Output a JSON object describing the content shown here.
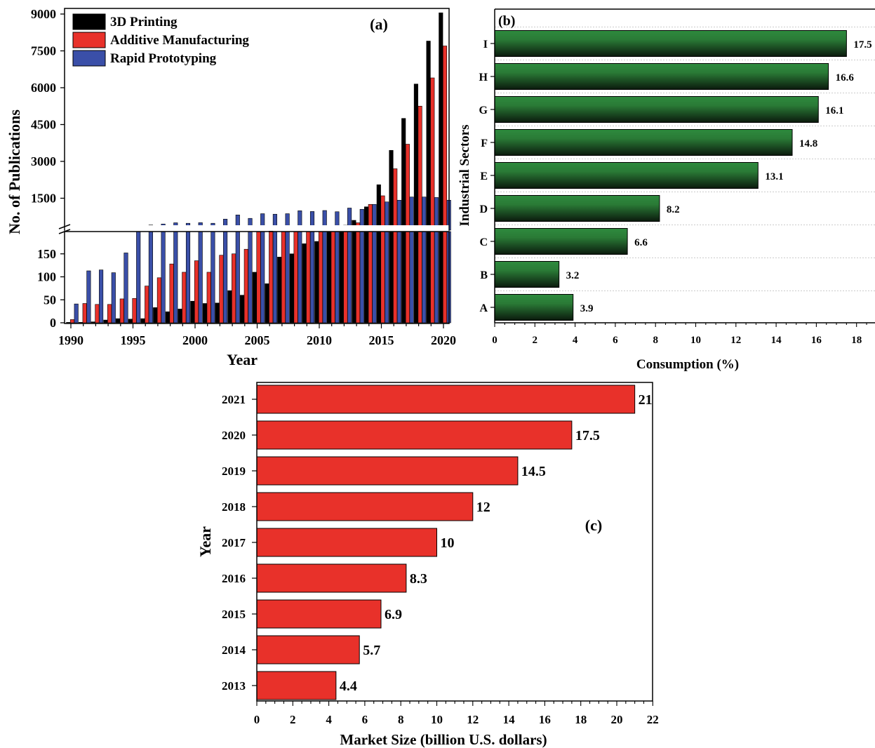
{
  "colors": {
    "printing_3d": "#000000",
    "additive": "#e8312a",
    "rapid": "#3a4fa8",
    "green_top": "#2e8b3e",
    "green_bottom": "#0b1a0d",
    "red_bar": "#e8312a"
  },
  "chart_data": [
    {
      "id": "a",
      "type": "bar",
      "panel_label": "(a)",
      "xlabel": "Year",
      "ylabel": "No. of Publications",
      "x": [
        1990,
        1991,
        1992,
        1993,
        1994,
        1995,
        1996,
        1997,
        1998,
        1999,
        2000,
        2001,
        2002,
        2003,
        2004,
        2005,
        2006,
        2007,
        2008,
        2009,
        2010,
        2011,
        2012,
        2013,
        2014,
        2015,
        2016,
        2017,
        2018,
        2019,
        2020
      ],
      "series": [
        {
          "name": "3D Printing",
          "color_key": "printing_3d",
          "values": [
            1,
            1,
            2,
            6,
            9,
            8,
            9,
            33,
            24,
            30,
            47,
            42,
            43,
            70,
            60,
            110,
            85,
            143,
            150,
            172,
            177,
            260,
            330,
            600,
            1150,
            2050,
            3450,
            4750,
            6150,
            7900,
            9050
          ]
        },
        {
          "name": "Additive Manufacturing",
          "color_key": "additive",
          "values": [
            7,
            42,
            40,
            40,
            52,
            53,
            80,
            98,
            128,
            110,
            135,
            110,
            147,
            150,
            160,
            198,
            200,
            205,
            210,
            215,
            220,
            250,
            400,
            500,
            1250,
            1600,
            2700,
            3700,
            5250,
            6400,
            7700
          ]
        },
        {
          "name": "Rapid Prototyping",
          "color_key": "rapid",
          "values": [
            41,
            113,
            115,
            109,
            152,
            380,
            410,
            450,
            500,
            480,
            505,
            480,
            650,
            820,
            680,
            870,
            850,
            870,
            990,
            960,
            1000,
            950,
            1100,
            1050,
            1250,
            1350,
            1420,
            1550,
            1550,
            1530,
            1420
          ]
        }
      ],
      "axis": {
        "broken": true,
        "lower_range": [
          0,
          200
        ],
        "upper_range": [
          200,
          9000
        ],
        "lower_ticks": [
          "0",
          "50",
          "100",
          "150"
        ],
        "upper_ticks": [
          "1500",
          "3000",
          "4500",
          "6000",
          "7500",
          "9000"
        ],
        "x_ticks": [
          "1990",
          "1995",
          "2000",
          "2005",
          "2010",
          "2015",
          "2020"
        ]
      },
      "legend_position": "top-left"
    },
    {
      "id": "b",
      "type": "bar",
      "orientation": "horizontal",
      "panel_label": "(b)",
      "xlabel": "Consumption (%)",
      "ylabel": "Industrial Sectors",
      "categories": [
        "A",
        "B",
        "C",
        "D",
        "E",
        "F",
        "G",
        "H",
        "I"
      ],
      "values": [
        3.9,
        3.2,
        6.6,
        8.2,
        13.1,
        14.8,
        16.1,
        16.6,
        17.5
      ],
      "value_labels": [
        "3.9",
        "3.2",
        "6.6",
        "8.2",
        "13.1",
        "14.8",
        "16.1",
        "16.6",
        "17.5"
      ],
      "xlim": [
        0,
        19
      ],
      "x_ticks": [
        "0",
        "2",
        "4",
        "6",
        "8",
        "10",
        "12",
        "14",
        "16",
        "18"
      ],
      "grid": true
    },
    {
      "id": "c",
      "type": "bar",
      "orientation": "horizontal",
      "panel_label": "(c)",
      "xlabel": "Market Size (billion U.S. dollars)",
      "ylabel": "Year",
      "categories": [
        "2013",
        "2014",
        "2015",
        "2016",
        "2017",
        "2018",
        "2019",
        "2020",
        "2021"
      ],
      "values": [
        4.4,
        5.7,
        6.9,
        8.3,
        10,
        12,
        14.5,
        17.5,
        21
      ],
      "value_labels": [
        "4.4",
        "5.7",
        "6.9",
        "8.3",
        "10",
        "12",
        "14.5",
        "17.5",
        "21"
      ],
      "xlim": [
        0,
        22
      ],
      "x_ticks": [
        "0",
        "2",
        "4",
        "6",
        "8",
        "10",
        "12",
        "14",
        "16",
        "18",
        "20",
        "22"
      ]
    }
  ]
}
